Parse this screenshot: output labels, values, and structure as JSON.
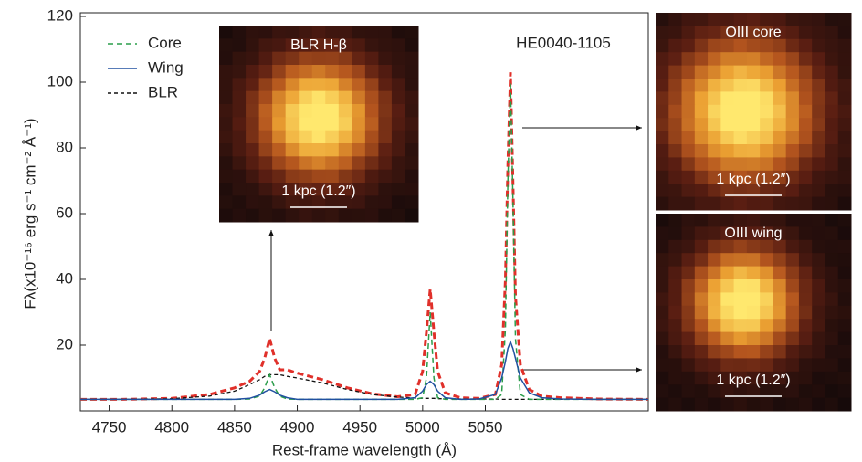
{
  "chart_data": {
    "type": "line",
    "target": "HE0040-1105",
    "x_label": "Rest-frame wavelength (Å)",
    "y_label": "Fλ(x10⁻¹⁶ erg s⁻¹ cm⁻² Å⁻¹)",
    "xlim": [
      4727,
      5180
    ],
    "xticks": [
      4750,
      4800,
      4850,
      4900,
      4950,
      5000,
      5050
    ],
    "ylim": [
      0,
      120
    ],
    "yticks": [
      20,
      40,
      60,
      80,
      100,
      120
    ],
    "x": [
      4727,
      4760,
      4800,
      4830,
      4850,
      4862,
      4870,
      4874,
      4878,
      4882,
      4886,
      4892,
      4900,
      4920,
      4940,
      4960,
      4980,
      4994,
      5000,
      5003,
      5006,
      5009,
      5012,
      5018,
      5030,
      5045,
      5058,
      5063,
      5066,
      5068,
      5070,
      5072,
      5074,
      5078,
      5085,
      5095,
      5110,
      5140,
      5180
    ],
    "series": [
      {
        "color": "#e0302a",
        "dash": "7,4",
        "width": 3,
        "values": [
          3.5,
          3.5,
          3.8,
          5,
          7,
          9,
          12,
          16,
          22,
          16,
          12.5,
          12.5,
          11.5,
          9.5,
          7,
          5.2,
          4.3,
          5,
          12,
          24,
          37,
          24,
          12,
          5.5,
          4,
          3.8,
          5,
          14,
          40,
          75,
          103,
          70,
          35,
          14,
          6.5,
          4.5,
          4,
          3.6,
          3.5
        ]
      },
      {
        "name": "BLR",
        "color": "#111111",
        "dash": "4,3",
        "width": 1.3,
        "values": [
          3.5,
          3.5,
          3.7,
          4.5,
          6,
          8,
          9.5,
          10.5,
          11,
          11,
          11,
          10.5,
          10,
          8.5,
          6.5,
          5,
          4.2,
          3.9,
          3.8,
          3.8,
          3.8,
          3.8,
          3.7,
          3.7,
          3.6,
          3.6,
          3.6,
          3.5,
          3.5,
          3.5,
          3.5,
          3.5,
          3.5,
          3.5,
          3.5,
          3.5,
          3.5,
          3.5,
          3.5
        ]
      },
      {
        "name": "Core",
        "color": "#2a9d4a",
        "dash": "6,4",
        "width": 1.5,
        "values": [
          3.5,
          3.5,
          3.5,
          3.5,
          3.5,
          3.6,
          4.5,
          7,
          11,
          7,
          4.5,
          3.6,
          3.5,
          3.5,
          3.5,
          3.5,
          3.5,
          3.5,
          4,
          10,
          30,
          10,
          4,
          3.5,
          3.5,
          3.5,
          3.5,
          5,
          25,
          70,
          100,
          65,
          22,
          5,
          3.5,
          3.5,
          3.5,
          3.5,
          3.5
        ]
      },
      {
        "name": "Wing",
        "color": "#2050a0",
        "dash": "",
        "width": 1.5,
        "values": [
          3.5,
          3.5,
          3.5,
          3.5,
          3.5,
          3.8,
          4.8,
          5.8,
          6.5,
          5.8,
          4.8,
          4,
          3.5,
          3.5,
          3.5,
          3.5,
          3.5,
          4,
          6,
          8,
          9,
          8,
          6,
          4,
          3.5,
          3.6,
          5,
          10,
          15,
          19,
          21,
          19,
          16,
          10,
          5.5,
          4,
          3.6,
          3.5,
          3.5
        ]
      }
    ],
    "legend_order": [
      2,
      3,
      1
    ],
    "insets": [
      {
        "title": "BLR H-β",
        "scale": "1 kpc (1.2″)"
      },
      {
        "title": "OIII core",
        "scale": "1 kpc (1.2″)"
      },
      {
        "title": "OIII wing",
        "scale": "1 kpc (1.2″)"
      }
    ]
  }
}
